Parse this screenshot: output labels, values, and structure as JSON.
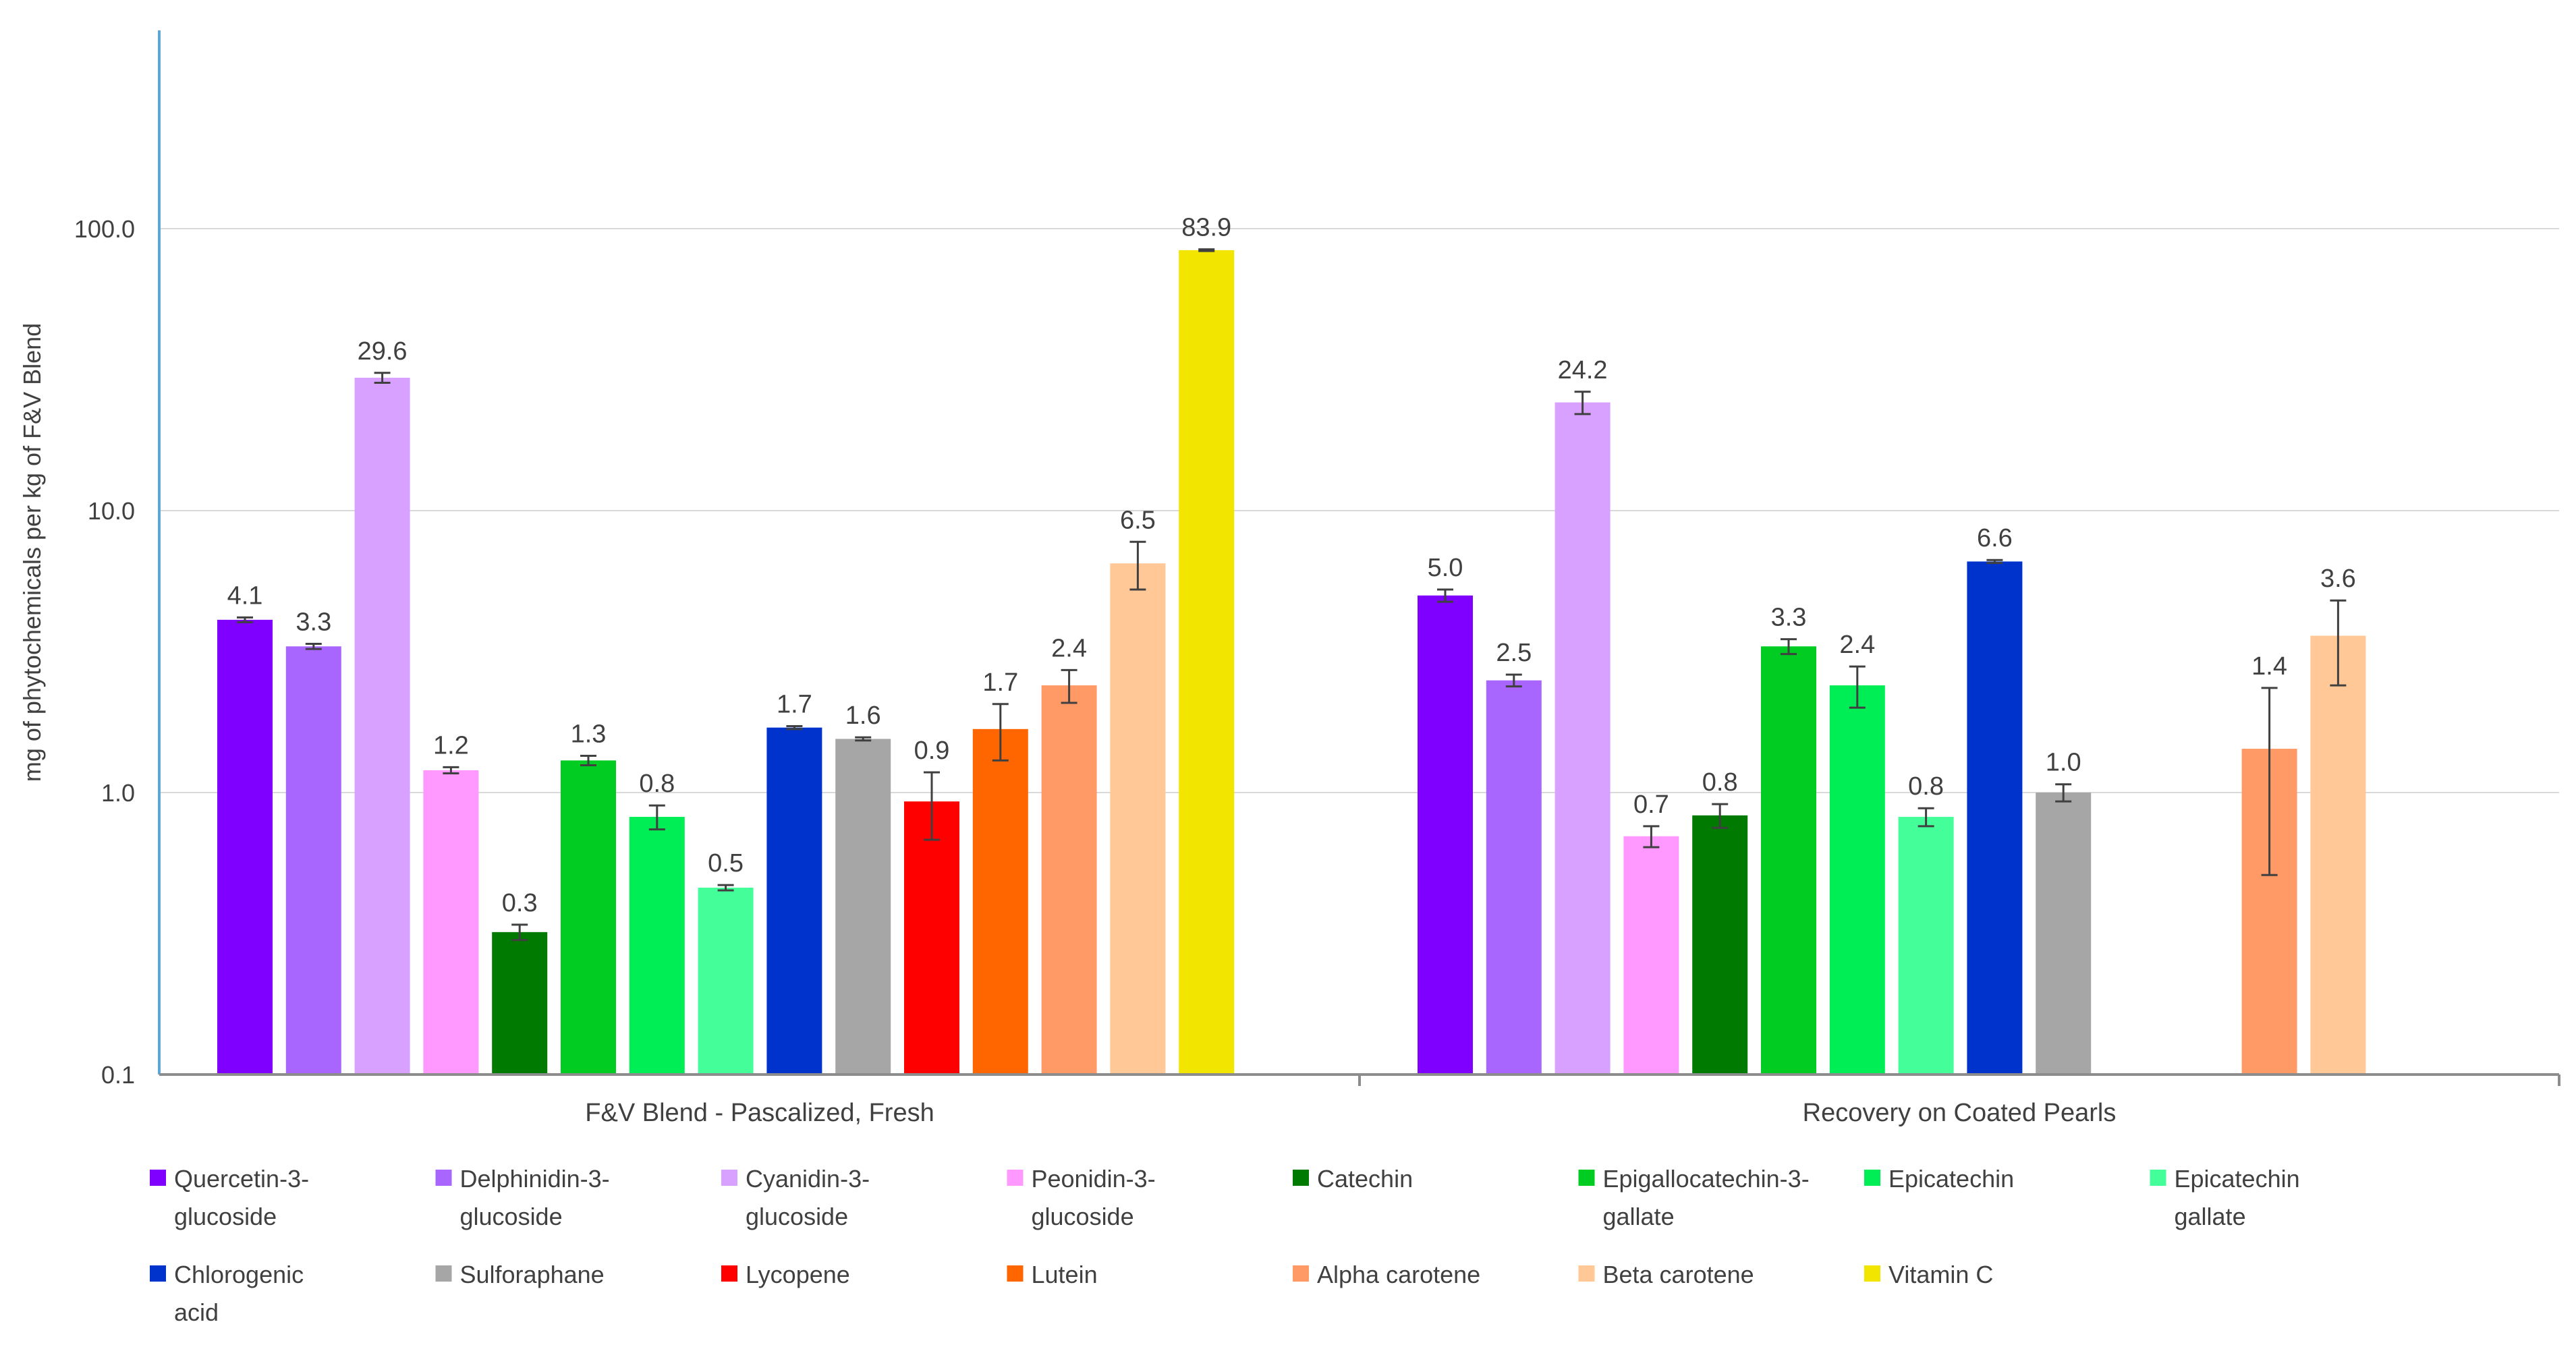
{
  "chart_data": {
    "type": "bar",
    "scale": "log",
    "title": "",
    "xlabel": "",
    "ylabel": "mg of phytochemicals per kg of F&V Blend",
    "ylim": [
      0.1,
      500
    ],
    "yticks": [
      "0.1",
      "1.0",
      "10.0",
      "100.0"
    ],
    "ytick_values": [
      0.1,
      1,
      10,
      100
    ],
    "grid": true,
    "legend_position": "bottom",
    "groups": [
      "F&V Blend - Pascalized, Fresh",
      "Recovery on Coated Pearls"
    ],
    "series": [
      {
        "name": "Quercetin-3-glucoside",
        "color": "#7f00ff",
        "values": [
          4.1,
          5.0
        ],
        "errors": [
          0.08,
          0.25
        ],
        "labels": [
          "4.1",
          "5.0"
        ]
      },
      {
        "name": "Delphinidin-3-glucoside",
        "color": "#a966ff",
        "values": [
          3.3,
          2.5
        ],
        "errors": [
          0.07,
          0.12
        ],
        "labels": [
          "3.3",
          "2.5"
        ]
      },
      {
        "name": "Cyanidin-3-glucoside",
        "color": "#d8a0ff",
        "values": [
          29.6,
          24.2
        ],
        "errors": [
          1.2,
          2.2
        ],
        "labels": [
          "29.6",
          "24.2"
        ]
      },
      {
        "name": "Peonidin-3-glucoside",
        "color": "#ff99ff",
        "values": [
          1.2,
          0.7
        ],
        "errors": [
          0.03,
          0.06
        ],
        "labels": [
          "1.2",
          "0.7"
        ]
      },
      {
        "name": "Catechin",
        "color": "#007a00",
        "values": [
          0.32,
          0.83
        ],
        "errors": [
          0.02,
          0.08
        ],
        "labels": [
          "0.3",
          "0.8"
        ]
      },
      {
        "name": "Epigallocatechin-3-gallate",
        "color": "#00cc22",
        "values": [
          1.3,
          3.3
        ],
        "errors": [
          0.05,
          0.2
        ],
        "labels": [
          "1.3",
          "3.3"
        ]
      },
      {
        "name": "Epicatechin",
        "color": "#00ee55",
        "values": [
          0.82,
          2.4
        ],
        "errors": [
          0.08,
          0.4
        ],
        "labels": [
          "0.8",
          "2.4"
        ]
      },
      {
        "name": "Epicatechin gallate",
        "color": "#44ff99",
        "values": [
          0.46,
          0.82
        ],
        "errors": [
          0.01,
          0.06
        ],
        "labels": [
          "0.5",
          "0.8"
        ]
      },
      {
        "name": "Chlorogenic acid",
        "color": "#0033cc",
        "values": [
          1.7,
          6.6
        ],
        "errors": [
          0.02,
          0.08
        ],
        "labels": [
          "1.7",
          "6.6"
        ]
      },
      {
        "name": "Sulforaphane",
        "color": "#a6a6a6",
        "values": [
          1.55,
          1.0
        ],
        "errors": [
          0.02,
          0.07
        ],
        "labels": [
          "1.6",
          "1.0"
        ]
      },
      {
        "name": "Lycopene",
        "color": "#ff0000",
        "values": [
          0.93,
          null
        ],
        "errors": [
          0.25,
          null
        ],
        "labels": [
          "0.9",
          ""
        ]
      },
      {
        "name": "Lutein",
        "color": "#ff6600",
        "values": [
          1.68,
          null
        ],
        "errors": [
          0.38,
          null
        ],
        "labels": [
          "1.7",
          ""
        ]
      },
      {
        "name": "Alpha carotene",
        "color": "#ff9966",
        "values": [
          2.4,
          1.43
        ],
        "errors": [
          0.32,
          0.92
        ],
        "labels": [
          "2.4",
          "1.4"
        ]
      },
      {
        "name": "Beta carotene",
        "color": "#ffc896",
        "values": [
          6.5,
          3.6
        ],
        "errors": [
          1.25,
          1.2
        ],
        "labels": [
          "6.5",
          "3.6"
        ]
      },
      {
        "name": "Vitamin C",
        "color": "#f2e600",
        "values": [
          83.9,
          null
        ],
        "errors": [
          0.6,
          null
        ],
        "labels": [
          "83.9",
          ""
        ]
      }
    ]
  }
}
